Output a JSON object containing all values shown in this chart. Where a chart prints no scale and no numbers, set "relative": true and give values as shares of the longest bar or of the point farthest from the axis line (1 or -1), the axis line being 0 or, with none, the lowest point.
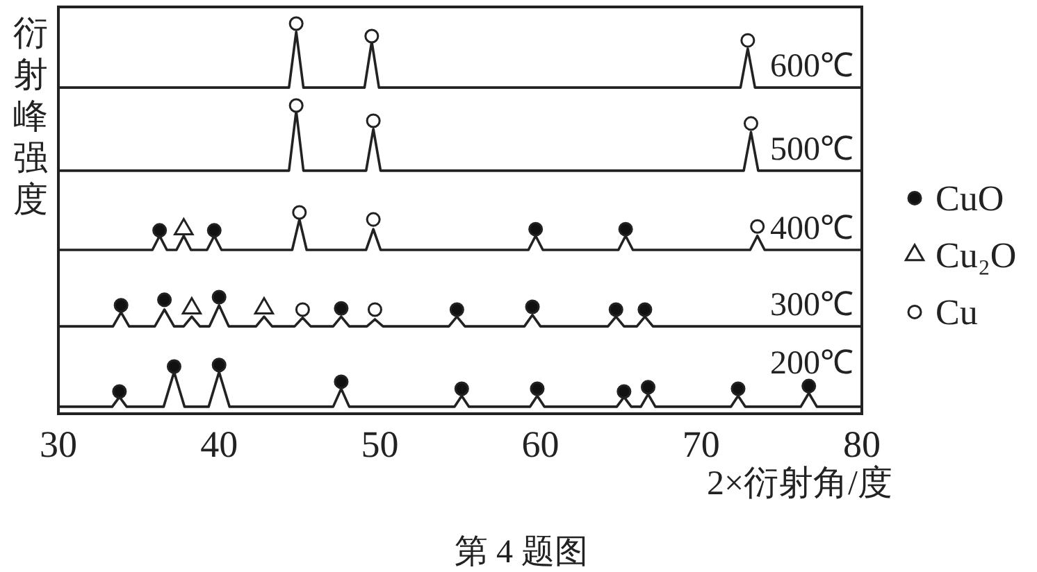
{
  "chart_data": {
    "type": "line",
    "relative": true,
    "xlabel": "2×衍射角/度",
    "ylabel": "衍射峰强度",
    "annotations": [
      "第 4 题图"
    ],
    "xlim": [
      30,
      80
    ],
    "xticks": [
      30,
      40,
      50,
      60,
      70,
      80
    ],
    "legend": "right",
    "series": [
      {
        "name": "600℃",
        "color": "#222222",
        "x": [
          30,
          44.35,
          44.8,
          45.25,
          49.05,
          49.5,
          49.95,
          72.45,
          72.9,
          73.35,
          80
        ],
        "values": [
          0.836,
          0.836,
          0.979,
          0.836,
          0.836,
          0.954,
          0.836,
          0.836,
          0.936,
          0.836,
          0.836
        ]
      },
      {
        "name": "500℃",
        "color": "#222222",
        "x": [
          30,
          44.35,
          44.8,
          45.25,
          49.15,
          49.6,
          50.05,
          72.65,
          73.1,
          73.55,
          80
        ],
        "values": [
          0.623,
          0.623,
          0.776,
          0.623,
          0.623,
          0.73,
          0.623,
          0.623,
          0.722,
          0.623,
          0.623
        ]
      },
      {
        "name": "400℃",
        "color": "#222222",
        "x": [
          30,
          35.85,
          36.3,
          36.75,
          37.35,
          37.8,
          38.25,
          39.25,
          39.7,
          40.15,
          44.55,
          45.0,
          45.45,
          49.15,
          49.6,
          50.05,
          59.25,
          59.7,
          60.15,
          64.85,
          65.3,
          65.75,
          73.05,
          73.5,
          73.95,
          80
        ],
        "values": [
          0.42,
          0.42,
          0.456,
          0.42,
          0.42,
          0.456,
          0.42,
          0.42,
          0.456,
          0.42,
          0.42,
          0.498,
          0.42,
          0.42,
          0.473,
          0.42,
          0.42,
          0.456,
          0.42,
          0.42,
          0.456,
          0.42,
          0.42,
          0.456,
          0.42,
          0.42
        ]
      },
      {
        "name": "300℃",
        "color": "#222222",
        "x": [
          30,
          33.4,
          33.9,
          34.4,
          36.0,
          36.6,
          37.2,
          37.8,
          38.3,
          38.8,
          39.4,
          40.0,
          40.6,
          42.3,
          42.8,
          43.3,
          44.7,
          45.2,
          45.7,
          47.1,
          47.6,
          48.1,
          49.2,
          49.7,
          50.2,
          54.3,
          54.8,
          55.3,
          59.0,
          59.5,
          60.0,
          64.2,
          64.7,
          65.2,
          66.0,
          66.5,
          67.0,
          80
        ],
        "values": [
          0.224,
          0.224,
          0.26,
          0.224,
          0.224,
          0.267,
          0.224,
          0.224,
          0.249,
          0.224,
          0.224,
          0.278,
          0.224,
          0.224,
          0.249,
          0.224,
          0.224,
          0.246,
          0.224,
          0.224,
          0.249,
          0.224,
          0.224,
          0.242,
          0.224,
          0.224,
          0.249,
          0.224,
          0.224,
          0.253,
          0.224,
          0.224,
          0.249,
          0.224,
          0.224,
          0.249,
          0.224,
          0.224
        ]
      },
      {
        "name": "200℃",
        "color": "#222222",
        "x": [
          30,
          33.35,
          33.8,
          34.25,
          36.55,
          37.2,
          37.85,
          39.35,
          40.0,
          40.65,
          47.1,
          47.6,
          48.1,
          54.65,
          55.1,
          55.55,
          59.35,
          59.8,
          60.25,
          64.75,
          65.2,
          65.65,
          66.25,
          66.7,
          67.15,
          71.85,
          72.3,
          72.75,
          76.2,
          76.7,
          77.2,
          80
        ],
        "values": [
          0.018,
          0.018,
          0.043,
          0.018,
          0.018,
          0.107,
          0.018,
          0.018,
          0.107,
          0.018,
          0.018,
          0.064,
          0.018,
          0.018,
          0.046,
          0.018,
          0.018,
          0.046,
          0.018,
          0.018,
          0.043,
          0.018,
          0.018,
          0.05,
          0.018,
          0.018,
          0.046,
          0.018,
          0.018,
          0.053,
          0.018,
          0.018
        ]
      },
      {
        "name": "CuO",
        "type": "scatter",
        "marker": "circle",
        "color": "#111111",
        "x": [
          36.3,
          39.7,
          59.7,
          65.3,
          33.9,
          36.6,
          40.0,
          47.6,
          54.8,
          59.5,
          64.7,
          66.5,
          33.8,
          37.2,
          40.0,
          47.6,
          55.1,
          59.8,
          65.2,
          66.7,
          72.3,
          76.7
        ],
        "values": [
          0.47,
          0.47,
          0.473,
          0.473,
          0.278,
          0.292,
          0.299,
          0.27,
          0.267,
          0.274,
          0.267,
          0.267,
          0.057,
          0.121,
          0.125,
          0.082,
          0.064,
          0.064,
          0.057,
          0.068,
          0.064,
          0.071
        ]
      },
      {
        "name": "Cu₂O",
        "type": "scatter",
        "marker": "triangle",
        "color": "#ffffff",
        "x": [
          37.8,
          38.3,
          42.8
        ],
        "values": [
          0.473,
          0.27,
          0.27
        ]
      },
      {
        "name": "Cu",
        "type": "scatter",
        "marker": "circle",
        "color": "#ffffff",
        "x": [
          44.8,
          49.5,
          72.9,
          44.8,
          49.6,
          73.1,
          45.0,
          49.6,
          73.5,
          45.2,
          49.7
        ],
        "values": [
          1.0,
          0.968,
          0.957,
          0.79,
          0.751,
          0.744,
          0.516,
          0.498,
          0.48,
          0.267,
          0.267
        ]
      }
    ]
  }
}
